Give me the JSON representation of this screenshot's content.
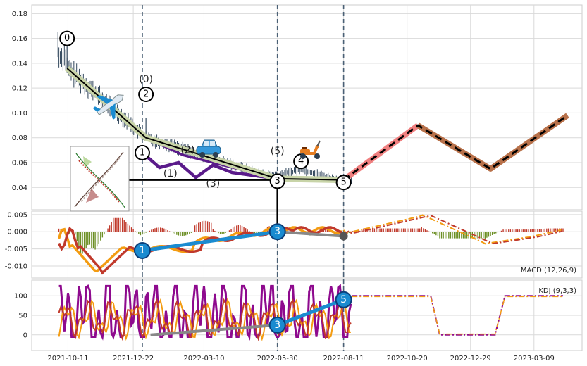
{
  "chart_data": [
    {
      "type": "line",
      "panel": "price",
      "ylim": [
        0.022,
        0.187
      ],
      "yticks": [
        0.04,
        0.06,
        0.08,
        0.1,
        0.12,
        0.14,
        0.16,
        0.18
      ],
      "ytick_labels": [
        "0.04",
        "0.06",
        "0.08",
        "0.10",
        "0.12",
        "0.14",
        "0.16",
        "0.18"
      ],
      "xlim": [
        "2021-09-01",
        "2023-05-01"
      ],
      "xticks": [
        "2021-10-11",
        "2021-12-22",
        "2022-03-10",
        "2022-05-30",
        "2022-08-11",
        "2022-10-20",
        "2022-12-29",
        "2023-03-09"
      ],
      "vlines": [
        "2022-01-01",
        "2022-05-30",
        "2022-08-11"
      ],
      "zigzag_main": [
        {
          "x": "2021-10-10",
          "y": 0.136
        },
        {
          "x": "2022-01-05",
          "y": 0.08
        },
        {
          "x": "2022-05-30",
          "y": 0.047
        },
        {
          "x": "2022-08-11",
          "y": 0.046
        }
      ],
      "zigzag_sub": [
        {
          "x": "2022-01-01",
          "y": 0.08
        },
        {
          "x": "2022-02-01",
          "y": 0.068
        },
        {
          "x": "2022-03-15",
          "y": 0.061
        },
        {
          "x": "2022-05-30",
          "y": 0.047
        }
      ],
      "purple_path": [
        {
          "x": "2022-01-01",
          "y": 0.068
        },
        {
          "x": "2022-01-20",
          "y": 0.056
        },
        {
          "x": "2022-02-10",
          "y": 0.06
        },
        {
          "x": "2022-03-01",
          "y": 0.048
        },
        {
          "x": "2022-03-20",
          "y": 0.058
        },
        {
          "x": "2022-04-10",
          "y": 0.052
        },
        {
          "x": "2022-05-30",
          "y": 0.047
        }
      ],
      "forecast": [
        {
          "x": "2022-08-11",
          "y": 0.046
        },
        {
          "x": "2022-11-01",
          "y": 0.09
        },
        {
          "x": "2023-01-20",
          "y": 0.055
        },
        {
          "x": "2023-04-15",
          "y": 0.098
        }
      ],
      "hline": {
        "y": 0.046,
        "from": "2021-12-01",
        "to": "2022-05-30"
      },
      "point_labels": [
        {
          "text": "0",
          "x": "2021-10-10",
          "y": 0.16,
          "circle": true
        },
        {
          "text": "2",
          "x": "2022-01-05",
          "y": 0.115,
          "circle": true
        },
        {
          "text": "(0)",
          "x": "2022-01-05",
          "y": 0.127,
          "circle": false
        },
        {
          "text": "1",
          "x": "2022-01-01",
          "y": 0.068,
          "circle": true
        },
        {
          "text": "(2)",
          "x": "2022-02-20",
          "y": 0.07,
          "circle": false
        },
        {
          "text": "(1)",
          "x": "2022-02-01",
          "y": 0.051,
          "circle": false
        },
        {
          "text": "(3)",
          "x": "2022-03-20",
          "y": 0.043,
          "circle": false
        },
        {
          "text": "(5)",
          "x": "2022-05-30",
          "y": 0.069,
          "circle": false
        },
        {
          "text": "4",
          "x": "2022-06-25",
          "y": 0.061,
          "circle": true
        },
        {
          "text": "3",
          "x": "2022-05-30",
          "y": 0.045,
          "circle": true
        },
        {
          "text": "5",
          "x": "2022-08-11",
          "y": 0.044,
          "circle": true
        }
      ]
    },
    {
      "type": "line",
      "panel": "macd",
      "label": "MACD (12,26,9)",
      "ylim": [
        -0.0135,
        0.006
      ],
      "yticks": [
        -0.01,
        -0.005,
        0.0,
        0.005
      ],
      "ytick_labels": [
        "-0.010",
        "-0.005",
        "0.000",
        "0.005"
      ],
      "markers": [
        {
          "text": "1",
          "x": "2022-01-01",
          "y": -0.0055
        },
        {
          "text": "3",
          "x": "2022-05-30",
          "y": 0.0
        }
      ]
    },
    {
      "type": "line",
      "panel": "kdj",
      "label": "KDJ (9,3,3)",
      "ylim": [
        -40,
        140
      ],
      "yticks": [
        0,
        50,
        100
      ],
      "ytick_labels": [
        "0",
        "50",
        "100"
      ],
      "markers": [
        {
          "text": "3",
          "x": "2022-05-30",
          "y": 25
        },
        {
          "text": "5",
          "x": "2022-08-11",
          "y": 90
        }
      ]
    }
  ],
  "colors": {
    "candles": "#34495e",
    "zigzag_main": "#000000",
    "zigzag_halo": "#c8d4a8",
    "blue": "#1a8bd0",
    "purple": "#5a1a8a",
    "forecast_pink": "#f08080",
    "forecast_brown": "#b8714a",
    "macd_dif": "#f39c12",
    "macd_dea": "#c0392b",
    "hist_pos": "#c0392b",
    "hist_neg": "#6b8e23",
    "kdj_k": "#c0392b",
    "kdj_d": "#f39c12",
    "kdj_j": "#8e0a8e"
  },
  "icons": [
    "airplane-icon",
    "car-icon",
    "scooter-icon",
    "thumbnail-image"
  ]
}
